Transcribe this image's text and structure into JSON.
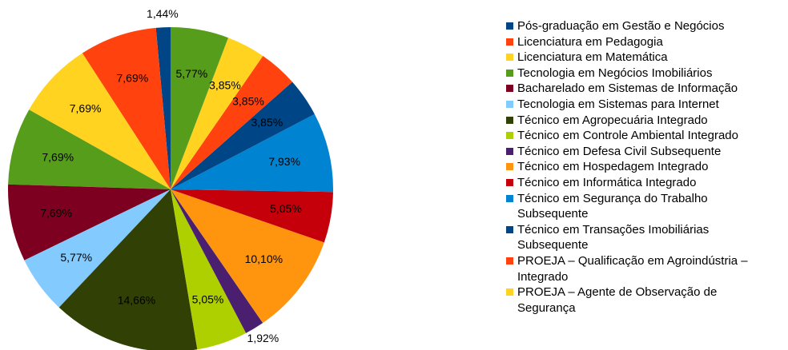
{
  "chart_data": {
    "type": "pie",
    "categories": [
      "Pós-graduação em Gestão e Negócios",
      "Licenciatura em Pedagogia",
      "Licenciatura em Matemática",
      "Tecnologia em Negócios Imobiliários",
      "Bacharelado em Sistemas de Informação",
      "Tecnologia em Sistemas para Internet",
      "Técnico em Agropecuária Integrado",
      "Técnico em Controle Ambiental Integrado",
      "Técnico em Defesa Civil Subsequente",
      "Técnico em Hospedagem Integrado",
      "Técnico em Informática Integrado",
      "Técnico em Segurança do Trabalho Subsequente",
      "Técnico em Transações Imobiliárias Subsequente",
      "PROEJA – Qualificação em Agroindústria – Integrado",
      "PROEJA – Agente de Observação de Segurança",
      null
    ],
    "values": [
      1.44,
      7.69,
      7.69,
      7.69,
      7.69,
      5.77,
      14.66,
      5.05,
      1.92,
      10.1,
      5.05,
      7.93,
      3.85,
      3.85,
      3.85,
      5.77
    ],
    "value_labels": [
      "1,44%",
      "7,69%",
      "7,69%",
      "7,69%",
      "7,69%",
      "5,77%",
      "14,66%",
      "5,05%",
      "1,92%",
      "10,10%",
      "5,05%",
      "7,93%",
      "3,85%",
      "3,85%",
      "3,85%",
      "5,77%"
    ],
    "colors": [
      "#004586",
      "#ff420e",
      "#ffd320",
      "#579d1c",
      "#7e0021",
      "#83caff",
      "#314004",
      "#aecf00",
      "#4b1f6f",
      "#ff950e",
      "#c5000b",
      "#0084d1",
      "#004586",
      "#ff420e",
      "#ffd320",
      "#579d1c"
    ],
    "legend": "right"
  }
}
